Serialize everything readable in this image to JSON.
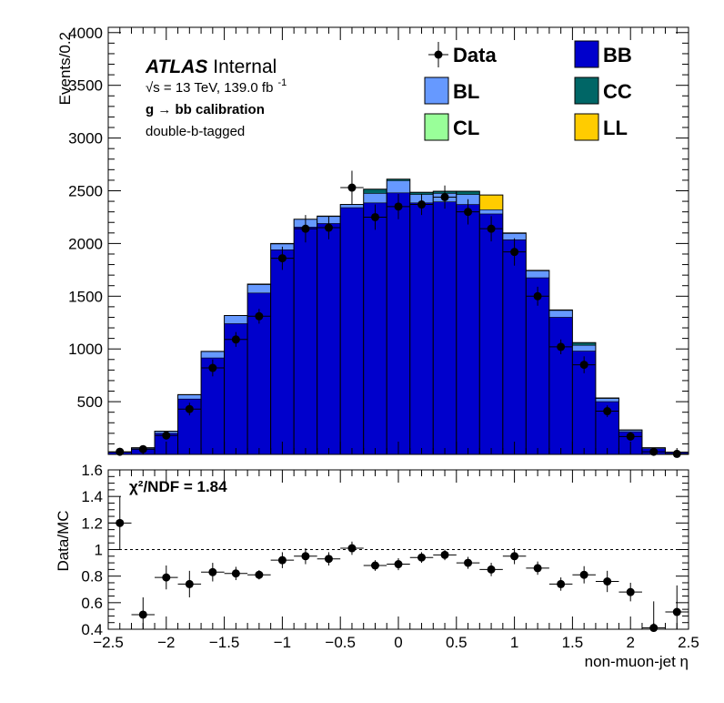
{
  "chart_data": [
    {
      "type": "bar",
      "stacked": true,
      "histogram": true,
      "xlim": [
        -2.5,
        2.5
      ],
      "ylim": [
        0,
        4050
      ],
      "ylabel": "Events/0.2",
      "y_ticks": [
        500,
        1000,
        1500,
        2000,
        2500,
        3000,
        3500,
        4000
      ],
      "bin_edges": [
        -2.4,
        -2.2,
        -2.0,
        -1.8,
        -1.6,
        -1.4,
        -1.2,
        -1.0,
        -0.8,
        -0.6,
        -0.4,
        -0.2,
        0.0,
        0.2,
        0.4,
        0.6,
        0.8,
        1.0,
        1.2,
        1.4,
        1.6,
        1.8,
        2.0,
        2.2,
        2.4
      ],
      "x_centers": [
        -2.4,
        -2.2,
        -2.0,
        -1.8,
        -1.6,
        -1.4,
        -1.2,
        -1.0,
        -0.8,
        -0.6,
        -0.4,
        -0.2,
        0.0,
        0.2,
        0.4,
        0.6,
        0.8,
        1.0,
        1.2,
        1.4,
        1.6,
        1.8,
        2.0,
        2.2,
        2.4
      ],
      "series": [
        {
          "name": "BB",
          "color": "#0000cc",
          "values": [
            20,
            55,
            200,
            525,
            915,
            1240,
            1530,
            1940,
            2155,
            2190,
            2340,
            2385,
            2480,
            2385,
            2395,
            2370,
            2280,
            2035,
            1675,
            1300,
            980,
            500,
            215,
            55,
            20
          ]
        },
        {
          "name": "BL",
          "color": "#6699ff",
          "values": [
            2,
            8,
            20,
            40,
            60,
            75,
            80,
            55,
            75,
            65,
            30,
            90,
            115,
            80,
            80,
            95,
            40,
            60,
            65,
            65,
            55,
            30,
            15,
            8,
            2
          ]
        },
        {
          "name": "CC",
          "color": "#006666",
          "values": [
            0,
            0,
            0,
            2,
            2,
            2,
            5,
            5,
            0,
            5,
            0,
            40,
            15,
            20,
            20,
            30,
            0,
            5,
            5,
            5,
            25,
            5,
            2,
            0,
            0
          ]
        },
        {
          "name": "CL",
          "color": "#99ff99",
          "values": [
            0,
            0,
            0,
            0,
            0,
            0,
            0,
            0,
            0,
            0,
            0,
            0,
            0,
            0,
            0,
            0,
            0,
            0,
            0,
            0,
            0,
            0,
            0,
            0,
            0
          ]
        },
        {
          "name": "LL",
          "color": "#ffcc00",
          "values": [
            0,
            0,
            0,
            0,
            0,
            0,
            0,
            0,
            0,
            0,
            0,
            0,
            0,
            0,
            0,
            0,
            140,
            0,
            0,
            0,
            0,
            0,
            0,
            0,
            0
          ]
        }
      ],
      "data_points": {
        "name": "Data",
        "y": [
          25,
          50,
          180,
          430,
          820,
          1090,
          1310,
          1860,
          2140,
          2150,
          2530,
          2250,
          2350,
          2370,
          2440,
          2300,
          2140,
          1920,
          1500,
          1020,
          850,
          410,
          170,
          25,
          5
        ],
        "err": [
          10,
          20,
          40,
          60,
          80,
          70,
          70,
          110,
          130,
          110,
          160,
          120,
          120,
          100,
          110,
          120,
          120,
          130,
          90,
          70,
          80,
          55,
          40,
          20,
          10
        ]
      },
      "legend": [
        "Data",
        "BB",
        "BL",
        "CC",
        "CL",
        "LL"
      ],
      "legend_placement": "top-right",
      "annotations": {
        "atlas": "ATLAS",
        "internal": "Internal",
        "energy_pre": "√s = 13 TeV, 139.0 fb",
        "energy_sup": "-1",
        "calib_g": "g",
        "calib_arrow": "→",
        "calib_rest": "bb calibration",
        "tag": "double-b-tagged"
      }
    },
    {
      "type": "scatter",
      "xlabel": "non-muon-jet η",
      "ylabel": "Data/MC",
      "xlim": [
        -2.5,
        2.5
      ],
      "ylim": [
        0.4,
        1.6
      ],
      "x_ticks": [
        -2.5,
        -2,
        -1.5,
        -1,
        -0.5,
        0,
        0.5,
        1,
        1.5,
        2,
        2.5
      ],
      "x_tick_labels": [
        "−2.5",
        "−2",
        "−1.5",
        "−1",
        "−0.5",
        "0",
        "0.5",
        "1",
        "1.5",
        "2",
        "2.5"
      ],
      "y_ticks": [
        0.4,
        0.6,
        0.8,
        1.0,
        1.2,
        1.4,
        1.6
      ],
      "y_tick_labels": [
        "0.4",
        "0.6",
        "0.8",
        "1",
        "1.2",
        "1.4",
        "1.6"
      ],
      "reference_line": 1.0,
      "x": [
        -2.4,
        -2.2,
        -2.0,
        -1.8,
        -1.6,
        -1.4,
        -1.2,
        -1.0,
        -0.8,
        -0.6,
        -0.4,
        -0.2,
        0.0,
        0.2,
        0.4,
        0.6,
        0.8,
        1.0,
        1.2,
        1.4,
        1.6,
        1.8,
        2.0,
        2.2,
        2.4
      ],
      "y": [
        1.2,
        0.51,
        0.79,
        0.74,
        0.83,
        0.82,
        0.81,
        0.92,
        0.95,
        0.93,
        1.01,
        0.88,
        0.89,
        0.94,
        0.96,
        0.9,
        0.85,
        0.95,
        0.86,
        0.74,
        0.81,
        0.76,
        0.68,
        0.41,
        0.53
      ],
      "err": [
        0.2,
        0.13,
        0.09,
        0.1,
        0.07,
        0.05,
        0.035,
        0.06,
        0.06,
        0.05,
        0.05,
        0.04,
        0.045,
        0.04,
        0.04,
        0.045,
        0.05,
        0.06,
        0.05,
        0.05,
        0.065,
        0.08,
        0.07,
        0.2,
        0.2
      ],
      "annotation": "χ²/NDF = 1.84"
    }
  ]
}
